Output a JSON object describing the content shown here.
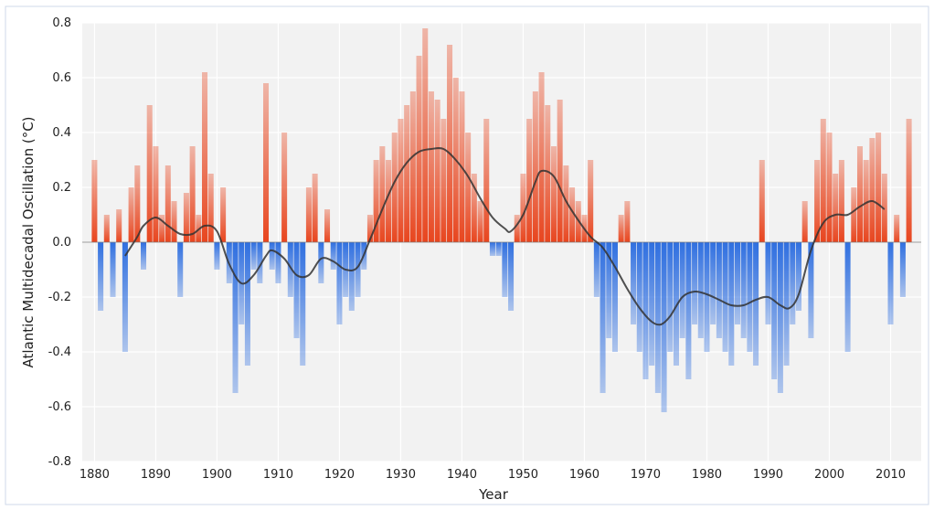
{
  "colors": {
    "positive": "#e8451e",
    "negative": "#2f6fe0",
    "smooth": "#333333",
    "plot_bg": "#f2f2f2",
    "grid": "#ffffff",
    "frame": "#cfd8e8"
  },
  "chart_data": {
    "type": "bar",
    "title": "",
    "xlabel": "Year",
    "ylabel": "Atlantic Multidecadal Oscillation (°C)",
    "xlim": [
      1878,
      2015
    ],
    "ylim": [
      -0.8,
      0.8
    ],
    "grid": true,
    "xticks": [
      1880,
      1890,
      1900,
      1910,
      1920,
      1930,
      1940,
      1950,
      1960,
      1970,
      1980,
      1990,
      2000,
      2010
    ],
    "xtick_labels": [
      "1880",
      "1890",
      "1900",
      "1910",
      "1920",
      "1930",
      "1940",
      "1950",
      "1960",
      "1970",
      "1980",
      "1990",
      "2000",
      "2010"
    ],
    "yticks": [
      -0.8,
      -0.6,
      -0.4,
      -0.2,
      0.0,
      0.2,
      0.4,
      0.6,
      0.8
    ],
    "ytick_labels": [
      "-0.8",
      "-0.6",
      "-0.4",
      "-0.2",
      "0.0",
      "0.2",
      "0.4",
      "0.6",
      "0.8"
    ],
    "series": [
      {
        "kind": "anomaly-bars",
        "x": [
          1880,
          1881,
          1882,
          1883,
          1884,
          1885,
          1886,
          1887,
          1888,
          1889,
          1890,
          1891,
          1892,
          1893,
          1894,
          1895,
          1896,
          1897,
          1898,
          1899,
          1900,
          1901,
          1902,
          1903,
          1904,
          1905,
          1906,
          1907,
          1908,
          1909,
          1910,
          1911,
          1912,
          1913,
          1914,
          1915,
          1916,
          1917,
          1918,
          1919,
          1920,
          1921,
          1922,
          1923,
          1924,
          1925,
          1926,
          1927,
          1928,
          1929,
          1930,
          1931,
          1932,
          1933,
          1934,
          1935,
          1936,
          1937,
          1938,
          1939,
          1940,
          1941,
          1942,
          1943,
          1944,
          1945,
          1946,
          1947,
          1948,
          1949,
          1950,
          1951,
          1952,
          1953,
          1954,
          1955,
          1956,
          1957,
          1958,
          1959,
          1960,
          1961,
          1962,
          1963,
          1964,
          1965,
          1966,
          1967,
          1968,
          1969,
          1970,
          1971,
          1972,
          1973,
          1974,
          1975,
          1976,
          1977,
          1978,
          1979,
          1980,
          1981,
          1982,
          1983,
          1984,
          1985,
          1986,
          1987,
          1988,
          1989,
          1990,
          1991,
          1992,
          1993,
          1994,
          1995,
          1996,
          1997,
          1998,
          1999,
          2000,
          2001,
          2002,
          2003,
          2004,
          2005,
          2006,
          2007,
          2008,
          2009,
          2010,
          2011,
          2012,
          2013
        ],
        "values": [
          0.3,
          -0.25,
          0.1,
          -0.2,
          0.12,
          -0.4,
          0.2,
          0.28,
          -0.1,
          0.5,
          0.35,
          0.1,
          0.28,
          0.15,
          -0.2,
          0.18,
          0.35,
          0.1,
          0.62,
          0.25,
          -0.1,
          0.2,
          -0.15,
          -0.55,
          -0.3,
          -0.45,
          -0.1,
          -0.15,
          0.58,
          -0.1,
          -0.15,
          0.4,
          -0.2,
          -0.35,
          -0.45,
          0.2,
          0.25,
          -0.15,
          0.12,
          -0.1,
          -0.3,
          -0.2,
          -0.25,
          -0.2,
          -0.1,
          0.1,
          0.3,
          0.35,
          0.3,
          0.4,
          0.45,
          0.5,
          0.55,
          0.68,
          0.78,
          0.55,
          0.52,
          0.45,
          0.72,
          0.6,
          0.55,
          0.4,
          0.25,
          0.15,
          0.45,
          -0.05,
          -0.05,
          -0.2,
          -0.25,
          0.1,
          0.25,
          0.45,
          0.55,
          0.62,
          0.5,
          0.35,
          0.52,
          0.28,
          0.2,
          0.15,
          0.1,
          0.3,
          -0.2,
          -0.55,
          -0.35,
          -0.4,
          0.1,
          0.15,
          -0.3,
          -0.4,
          -0.5,
          -0.45,
          -0.55,
          -0.62,
          -0.4,
          -0.45,
          -0.35,
          -0.5,
          -0.3,
          -0.35,
          -0.4,
          -0.3,
          -0.35,
          -0.4,
          -0.45,
          -0.3,
          -0.35,
          -0.4,
          -0.45,
          0.3,
          -0.3,
          -0.5,
          -0.55,
          -0.45,
          -0.3,
          -0.25,
          0.15,
          -0.35,
          0.3,
          0.45,
          0.4,
          0.25,
          0.3,
          -0.4,
          0.2,
          0.35,
          0.3,
          0.38,
          0.4,
          0.25,
          -0.3,
          0.1,
          -0.2,
          0.45
        ]
      },
      {
        "kind": "smoothed-line",
        "x": [
          1885,
          1887,
          1888,
          1890,
          1892,
          1894,
          1896,
          1898,
          1900,
          1902,
          1904,
          1906,
          1908,
          1909,
          1911,
          1913,
          1915,
          1917,
          1919,
          1921,
          1923,
          1925,
          1927,
          1929,
          1931,
          1933,
          1935,
          1937,
          1939,
          1941,
          1943,
          1945,
          1947,
          1948,
          1950,
          1952,
          1953,
          1955,
          1957,
          1959,
          1961,
          1963,
          1965,
          1967,
          1969,
          1971,
          1972.5,
          1974,
          1976,
          1978,
          1980,
          1982,
          1984,
          1986,
          1988,
          1990,
          1992,
          1993.5,
          1995,
          1997,
          1999,
          2001,
          2003,
          2005,
          2007,
          2009
        ],
        "values": [
          -0.05,
          0.02,
          0.06,
          0.09,
          0.06,
          0.03,
          0.03,
          0.06,
          0.04,
          -0.08,
          -0.15,
          -0.12,
          -0.05,
          -0.03,
          -0.06,
          -0.12,
          -0.12,
          -0.06,
          -0.07,
          -0.1,
          -0.09,
          0.01,
          0.12,
          0.22,
          0.29,
          0.33,
          0.34,
          0.34,
          0.3,
          0.24,
          0.16,
          0.09,
          0.05,
          0.04,
          0.1,
          0.22,
          0.26,
          0.24,
          0.15,
          0.08,
          0.02,
          -0.02,
          -0.09,
          -0.17,
          -0.24,
          -0.29,
          -0.3,
          -0.27,
          -0.2,
          -0.18,
          -0.19,
          -0.21,
          -0.23,
          -0.23,
          -0.21,
          -0.2,
          -0.23,
          -0.24,
          -0.19,
          -0.03,
          0.07,
          0.1,
          0.1,
          0.13,
          0.15,
          0.12
        ]
      }
    ]
  }
}
